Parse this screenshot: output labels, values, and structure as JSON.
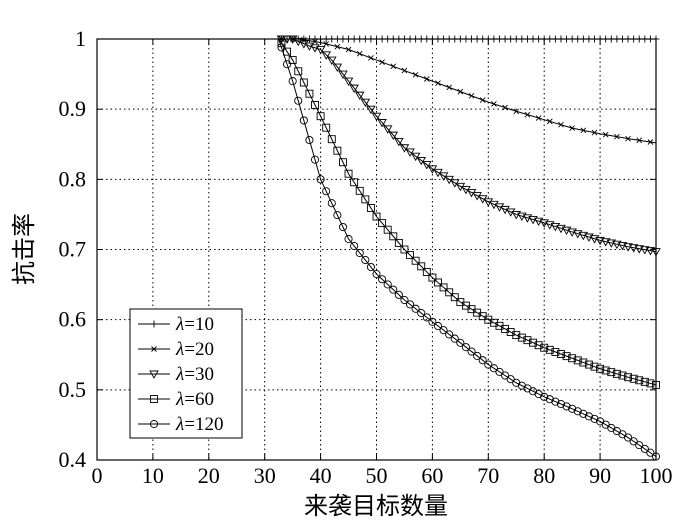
{
  "chart_data": {
    "type": "line",
    "xlabel": "来袭目标数量",
    "ylabel": "抗击率",
    "xlim": [
      0,
      100
    ],
    "ylim": [
      0.4,
      1
    ],
    "grid": true,
    "x_ticks": [
      "0",
      "10",
      "20",
      "30",
      "40",
      "50",
      "60",
      "70",
      "80",
      "90",
      "100"
    ],
    "y_ticks": [
      "0.4",
      "0.5",
      "0.6",
      "0.7",
      "0.8",
      "0.9",
      "1"
    ],
    "legend_position": "bottom-left",
    "series": [
      {
        "name": "λ=10",
        "legend_prefix": "λ",
        "legend_value": "=10",
        "marker": "plus",
        "x": [
          33,
          47,
          48,
          50,
          60,
          70,
          80,
          90,
          100
        ],
        "y": [
          1,
          1,
          1,
          1,
          1,
          1,
          1,
          1,
          1
        ]
      },
      {
        "name": "λ=20",
        "legend_prefix": "λ",
        "legend_value": "=20",
        "marker": "x",
        "x": [
          33,
          36,
          40,
          45,
          50,
          55,
          60,
          65,
          70,
          75,
          80,
          85,
          90,
          95,
          100
        ],
        "y": [
          1,
          1,
          0.995,
          0.985,
          0.97,
          0.955,
          0.94,
          0.925,
          0.91,
          0.897,
          0.885,
          0.873,
          0.865,
          0.858,
          0.852
        ]
      },
      {
        "name": "λ=30",
        "legend_prefix": "λ",
        "legend_value": "=30",
        "marker": "triangle-down",
        "x": [
          33,
          35,
          38,
          40,
          42,
          45,
          50,
          55,
          60,
          65,
          70,
          75,
          80,
          85,
          90,
          95,
          100
        ],
        "y": [
          1,
          1,
          0.99,
          0.985,
          0.97,
          0.94,
          0.89,
          0.845,
          0.815,
          0.79,
          0.768,
          0.75,
          0.738,
          0.725,
          0.713,
          0.704,
          0.697
        ]
      },
      {
        "name": "λ=60",
        "legend_prefix": "λ",
        "legend_value": "=60",
        "marker": "square",
        "x": [
          32.5,
          35,
          40,
          45,
          50,
          55,
          60,
          65,
          70,
          75,
          80,
          85,
          90,
          95,
          100
        ],
        "y": [
          1,
          0.97,
          0.89,
          0.808,
          0.747,
          0.7,
          0.66,
          0.625,
          0.6,
          0.578,
          0.56,
          0.545,
          0.53,
          0.518,
          0.507
        ]
      },
      {
        "name": "λ=120",
        "legend_prefix": "λ",
        "legend_value": "=120",
        "marker": "circle",
        "x": [
          32.5,
          35,
          40,
          45,
          50,
          55,
          60,
          65,
          70,
          75,
          80,
          85,
          90,
          95,
          100
        ],
        "y": [
          1,
          0.94,
          0.8,
          0.715,
          0.665,
          0.628,
          0.597,
          0.567,
          0.536,
          0.51,
          0.49,
          0.473,
          0.455,
          0.432,
          0.405
        ]
      }
    ]
  }
}
